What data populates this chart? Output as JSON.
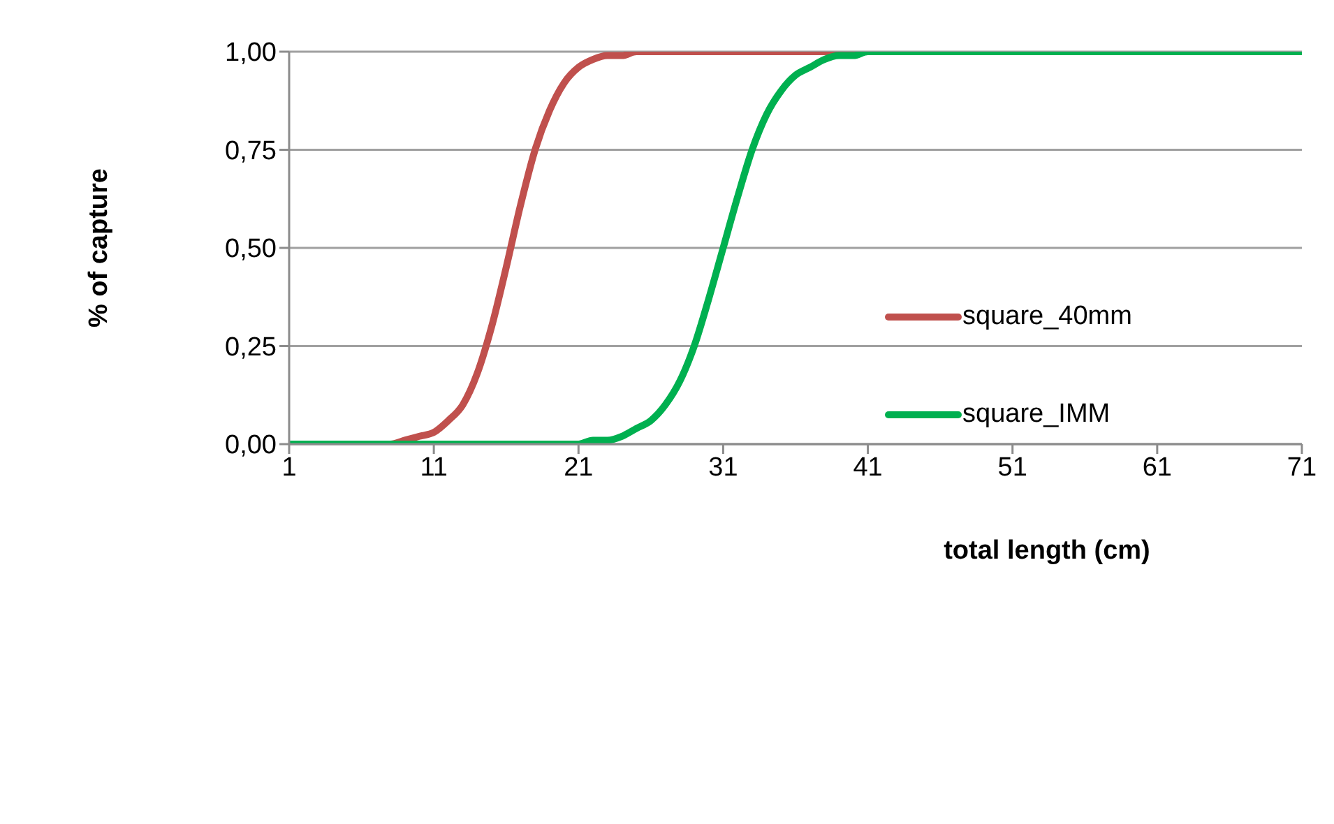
{
  "chart_data": {
    "type": "line",
    "xlabel": "total length (cm)",
    "ylabel": "% of capture",
    "series": [
      {
        "name": "square_40mm",
        "color": "#c0504d",
        "x": [
          1,
          5,
          8,
          9,
          10,
          11,
          12,
          13,
          14,
          15,
          16,
          17,
          18,
          19,
          20,
          21,
          22,
          23,
          24,
          25,
          30,
          40
        ],
        "values": [
          0.0,
          0.0,
          0.0,
          0.01,
          0.02,
          0.03,
          0.06,
          0.1,
          0.18,
          0.3,
          0.45,
          0.61,
          0.75,
          0.85,
          0.92,
          0.96,
          0.98,
          0.99,
          0.99,
          1.0,
          1.0,
          1.0
        ]
      },
      {
        "name": "square_IMM",
        "color": "#00b050",
        "x": [
          1,
          10,
          20,
          21,
          22,
          23,
          24,
          25,
          26,
          27,
          28,
          29,
          30,
          31,
          32,
          33,
          34,
          35,
          36,
          37,
          38,
          39,
          40,
          41,
          50,
          60,
          71
        ],
        "values": [
          0.0,
          0.0,
          0.0,
          0.0,
          0.01,
          0.01,
          0.02,
          0.04,
          0.06,
          0.1,
          0.16,
          0.25,
          0.37,
          0.5,
          0.63,
          0.75,
          0.84,
          0.9,
          0.94,
          0.96,
          0.98,
          0.99,
          0.99,
          1.0,
          1.0,
          1.0,
          1.0
        ]
      }
    ],
    "xlim": [
      1,
      71
    ],
    "xticks": [
      1,
      11,
      21,
      31,
      41,
      51,
      61,
      71
    ],
    "ylim": [
      0,
      1
    ],
    "yticks": [
      {
        "value": 0,
        "label": "0,00"
      },
      {
        "value": 0.25,
        "label": "0,25"
      },
      {
        "value": 0.5,
        "label": "0,50"
      },
      {
        "value": 0.75,
        "label": "0,75"
      },
      {
        "value": 1,
        "label": "1,00"
      }
    ],
    "grid": "y",
    "legend": "right",
    "marker": "none",
    "line_style": "solid"
  }
}
